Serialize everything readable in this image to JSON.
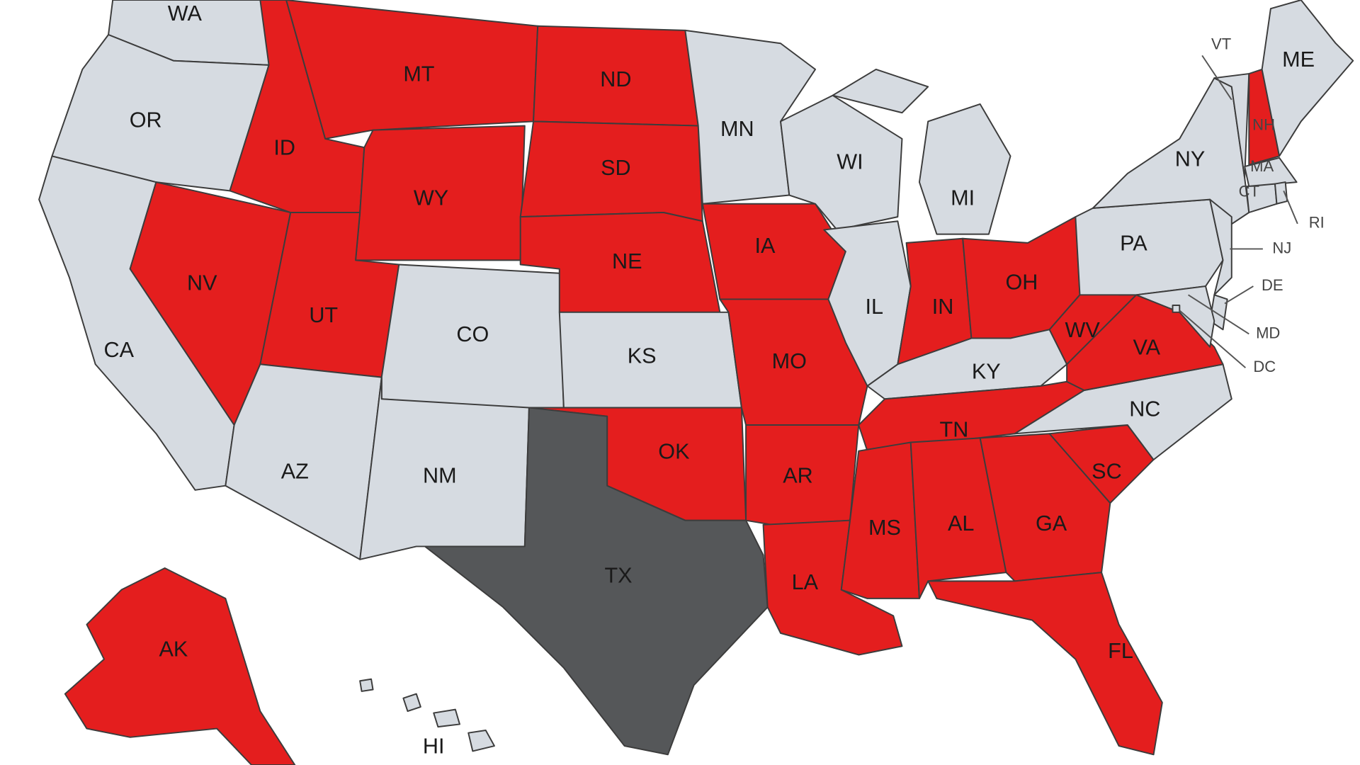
{
  "colors": {
    "highlighted": "#e41e1e",
    "standard": "#d6dbe1",
    "special": "#555759",
    "border": "#3c3c3c",
    "background": "#ffffff"
  },
  "legend_states": {
    "highlighted": [
      "AK",
      "AL",
      "AR",
      "FL",
      "GA",
      "IA",
      "ID",
      "IN",
      "LA",
      "MO",
      "MS",
      "MT",
      "ND",
      "NE",
      "NH",
      "NV",
      "OH",
      "OK",
      "SC",
      "SD",
      "TN",
      "UT",
      "VA",
      "WV",
      "WY"
    ],
    "special": [
      "TX"
    ]
  },
  "states": [
    {
      "abbr": "WA",
      "status": "standard"
    },
    {
      "abbr": "OR",
      "status": "standard"
    },
    {
      "abbr": "CA",
      "status": "standard"
    },
    {
      "abbr": "NV",
      "status": "highlighted"
    },
    {
      "abbr": "ID",
      "status": "highlighted"
    },
    {
      "abbr": "MT",
      "status": "highlighted"
    },
    {
      "abbr": "WY",
      "status": "highlighted"
    },
    {
      "abbr": "UT",
      "status": "highlighted"
    },
    {
      "abbr": "AZ",
      "status": "standard"
    },
    {
      "abbr": "CO",
      "status": "standard"
    },
    {
      "abbr": "NM",
      "status": "standard"
    },
    {
      "abbr": "ND",
      "status": "highlighted"
    },
    {
      "abbr": "SD",
      "status": "highlighted"
    },
    {
      "abbr": "NE",
      "status": "highlighted"
    },
    {
      "abbr": "KS",
      "status": "standard"
    },
    {
      "abbr": "OK",
      "status": "highlighted"
    },
    {
      "abbr": "TX",
      "status": "special"
    },
    {
      "abbr": "MN",
      "status": "standard"
    },
    {
      "abbr": "IA",
      "status": "highlighted"
    },
    {
      "abbr": "MO",
      "status": "highlighted"
    },
    {
      "abbr": "AR",
      "status": "highlighted"
    },
    {
      "abbr": "LA",
      "status": "highlighted"
    },
    {
      "abbr": "WI",
      "status": "standard"
    },
    {
      "abbr": "IL",
      "status": "standard"
    },
    {
      "abbr": "MI",
      "status": "standard"
    },
    {
      "abbr": "IN",
      "status": "highlighted"
    },
    {
      "abbr": "OH",
      "status": "highlighted"
    },
    {
      "abbr": "KY",
      "status": "standard"
    },
    {
      "abbr": "TN",
      "status": "highlighted"
    },
    {
      "abbr": "MS",
      "status": "highlighted"
    },
    {
      "abbr": "AL",
      "status": "highlighted"
    },
    {
      "abbr": "GA",
      "status": "highlighted"
    },
    {
      "abbr": "SC",
      "status": "highlighted"
    },
    {
      "abbr": "FL",
      "status": "highlighted"
    },
    {
      "abbr": "NC",
      "status": "standard"
    },
    {
      "abbr": "VA",
      "status": "highlighted"
    },
    {
      "abbr": "WV",
      "status": "highlighted"
    },
    {
      "abbr": "PA",
      "status": "standard"
    },
    {
      "abbr": "NY",
      "status": "standard"
    },
    {
      "abbr": "NJ",
      "status": "standard"
    },
    {
      "abbr": "DE",
      "status": "standard"
    },
    {
      "abbr": "MD",
      "status": "standard"
    },
    {
      "abbr": "DC",
      "status": "standard"
    },
    {
      "abbr": "VT",
      "status": "standard"
    },
    {
      "abbr": "NH",
      "status": "highlighted"
    },
    {
      "abbr": "ME",
      "status": "standard"
    },
    {
      "abbr": "MA",
      "status": "standard"
    },
    {
      "abbr": "CT",
      "status": "standard"
    },
    {
      "abbr": "RI",
      "status": "standard"
    },
    {
      "abbr": "AK",
      "status": "highlighted"
    },
    {
      "abbr": "HI",
      "status": "standard"
    }
  ]
}
